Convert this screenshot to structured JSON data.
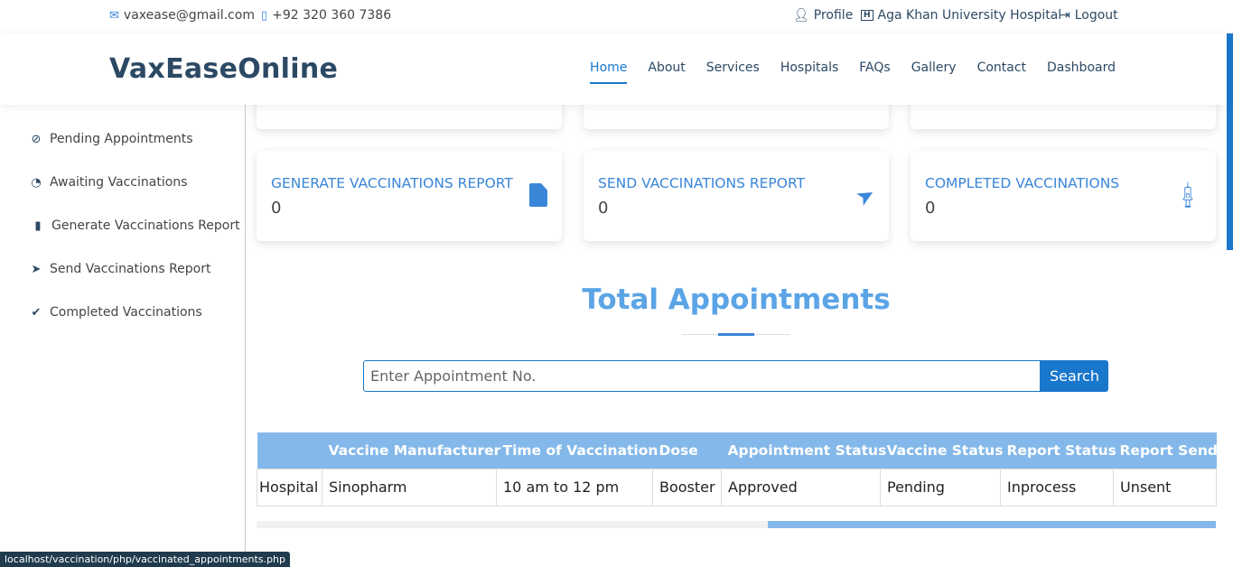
{
  "topbar": {
    "email": "vaxease@gmail.com",
    "phone": "+92 320 360 7386",
    "profile": "Profile",
    "hospital": "Aga Khan University Hospital",
    "logout": "Logout"
  },
  "header": {
    "logo": "VaxEaseOnline",
    "nav": [
      "Home",
      "About",
      "Services",
      "Hospitals",
      "FAQs",
      "Gallery",
      "Contact",
      "Dashboard"
    ],
    "active": "Home"
  },
  "sidebar": {
    "items": [
      "Pending Appointments",
      "Awaiting Vaccinations",
      "Generate Vaccinations Report",
      "Send Vaccinations Report",
      "Completed Vaccinations"
    ]
  },
  "cards": [
    {
      "title": "GENERATE VACCINATIONS REPORT",
      "value": "0",
      "icon": "file-icon"
    },
    {
      "title": "SEND VACCINATIONS REPORT",
      "value": "0",
      "icon": "paper-plane-icon"
    },
    {
      "title": "COMPLETED VACCINATIONS",
      "value": "0",
      "icon": "syringe-icon"
    }
  ],
  "section": {
    "title": "Total Appointments",
    "search_placeholder": "Enter Appointment No.",
    "search_button": "Search"
  },
  "table": {
    "headers": [
      "",
      "Vaccine Manufacturer",
      "Time of Vaccination",
      "Dose",
      "Appointment Status",
      "Vaccine Status",
      "Report Status",
      "Report Send"
    ],
    "rows": [
      [
        "Hospital",
        "Sinopharm",
        "10 am to 12 pm",
        "Booster",
        "Approved",
        "Pending",
        "Inprocess",
        "Unsent"
      ]
    ]
  },
  "statusbar": "localhost/vaccination/php/vaccinated_appointments.php",
  "colors": {
    "accent": "#1977cc",
    "table_header": "#84b8ea",
    "title": "#5ba4e6",
    "logo": "#2c4964"
  }
}
